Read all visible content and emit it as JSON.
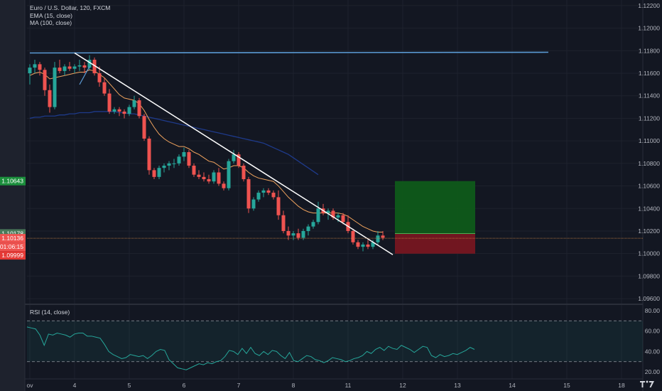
{
  "header": {
    "symbol_line": "Euro / U.S. Dollar, 120, FXCM",
    "ema_label": "EMA (15, close)",
    "ma_label": "MA (100, close)"
  },
  "rsi": {
    "label": "RSI (14, close)",
    "ticks": [
      {
        "v": 80,
        "label": "80.00"
      },
      {
        "v": 60,
        "label": "60.00"
      },
      {
        "v": 40,
        "label": "40.00"
      },
      {
        "v": 20,
        "label": "20.00"
      }
    ],
    "band_upper": 70,
    "band_lower": 30,
    "color": "#26a69a",
    "values": [
      64,
      63,
      62,
      56,
      46,
      57,
      56,
      58,
      57,
      56,
      54,
      57,
      58,
      58,
      55,
      55,
      54,
      53,
      47,
      40,
      37,
      35,
      33,
      34,
      37,
      36,
      35,
      36,
      33,
      36,
      40,
      42,
      41,
      32,
      28,
      24,
      23,
      22,
      24,
      26,
      28,
      27,
      29,
      28,
      30,
      31,
      35,
      41,
      40,
      37,
      43,
      38,
      44,
      38,
      36,
      40,
      37,
      41,
      40,
      36,
      33,
      39,
      31,
      30,
      33,
      36,
      35,
      32,
      31,
      29,
      31,
      34,
      33,
      32,
      30,
      31,
      33,
      34,
      36,
      40,
      38,
      42,
      44,
      41,
      45,
      43,
      42,
      46,
      44,
      42,
      39,
      42,
      45,
      44,
      36,
      34,
      37,
      35,
      36,
      38,
      37,
      39,
      41,
      44,
      42
    ]
  },
  "chart_data": {
    "type": "candlestick",
    "title": "Euro / U.S. Dollar, 120, FXCM",
    "ylim": [
      1.0955,
      1.1225
    ],
    "y_ticks": [
      "1.12200",
      "1.12000",
      "1.11800",
      "1.11600",
      "1.11400",
      "1.11200",
      "1.11000",
      "1.10800",
      "1.10600",
      "1.10400",
      "1.10200",
      "1.10000",
      "1.09800",
      "1.09600"
    ],
    "x_ticks": [
      {
        "i": 0,
        "label": "ov"
      },
      {
        "i": 9,
        "label": "4"
      },
      {
        "i": 20,
        "label": "5"
      },
      {
        "i": 31,
        "label": "6"
      },
      {
        "i": 42,
        "label": "7"
      },
      {
        "i": 53,
        "label": "8"
      },
      {
        "i": 64,
        "label": "11"
      },
      {
        "i": 75,
        "label": "12"
      },
      {
        "i": 86,
        "label": "13"
      },
      {
        "i": 97,
        "label": "14"
      },
      {
        "i": 108,
        "label": "15"
      },
      {
        "i": 119,
        "label": "18"
      }
    ],
    "up_color": "#26a69a",
    "down_color": "#ef5350",
    "candles": [
      [
        1.116,
        1.1168,
        1.115,
        1.1165
      ],
      [
        1.1165,
        1.1172,
        1.116,
        1.1168
      ],
      [
        1.1168,
        1.117,
        1.1158,
        1.1163
      ],
      [
        1.1163,
        1.1165,
        1.114,
        1.1145
      ],
      [
        1.1145,
        1.115,
        1.1125,
        1.113
      ],
      [
        1.113,
        1.117,
        1.1128,
        1.1165
      ],
      [
        1.1165,
        1.1172,
        1.116,
        1.1162
      ],
      [
        1.1162,
        1.1168,
        1.1158,
        1.1166
      ],
      [
        1.1166,
        1.117,
        1.1162,
        1.1164
      ],
      [
        1.1164,
        1.1168,
        1.116,
        1.1166
      ],
      [
        1.1166,
        1.1172,
        1.1162,
        1.1167
      ],
      [
        1.1167,
        1.117,
        1.116,
        1.1165
      ],
      [
        1.1165,
        1.1176,
        1.1163,
        1.1172
      ],
      [
        1.1172,
        1.1174,
        1.1158,
        1.116
      ],
      [
        1.116,
        1.1166,
        1.1148,
        1.1152
      ],
      [
        1.1152,
        1.1156,
        1.114,
        1.1142
      ],
      [
        1.1142,
        1.1146,
        1.1124,
        1.1126
      ],
      [
        1.1126,
        1.113,
        1.1124,
        1.1128
      ],
      [
        1.1128,
        1.113,
        1.1122,
        1.1126
      ],
      [
        1.1126,
        1.1128,
        1.112,
        1.1124
      ],
      [
        1.1124,
        1.1132,
        1.1122,
        1.113
      ],
      [
        1.113,
        1.114,
        1.1128,
        1.1136
      ],
      [
        1.1136,
        1.1138,
        1.112,
        1.1122
      ],
      [
        1.1122,
        1.1124,
        1.11,
        1.1102
      ],
      [
        1.1102,
        1.1104,
        1.107,
        1.1074
      ],
      [
        1.1074,
        1.1076,
        1.1066,
        1.1068
      ],
      [
        1.1068,
        1.1078,
        1.1066,
        1.1076
      ],
      [
        1.1076,
        1.108,
        1.1072,
        1.1078
      ],
      [
        1.1078,
        1.1082,
        1.1074,
        1.108
      ],
      [
        1.108,
        1.1084,
        1.1076,
        1.108
      ],
      [
        1.108,
        1.1088,
        1.1078,
        1.1086
      ],
      [
        1.1086,
        1.1094,
        1.1082,
        1.109
      ],
      [
        1.109,
        1.1092,
        1.1076,
        1.1078
      ],
      [
        1.1078,
        1.108,
        1.1068,
        1.107
      ],
      [
        1.107,
        1.1074,
        1.1066,
        1.1068
      ],
      [
        1.1068,
        1.1072,
        1.1064,
        1.1066
      ],
      [
        1.1066,
        1.107,
        1.1062,
        1.1064
      ],
      [
        1.1064,
        1.1074,
        1.1062,
        1.1072
      ],
      [
        1.1072,
        1.1076,
        1.106,
        1.1062
      ],
      [
        1.1062,
        1.1064,
        1.1056,
        1.1058
      ],
      [
        1.1058,
        1.1084,
        1.1056,
        1.1082
      ],
      [
        1.1082,
        1.1092,
        1.108,
        1.1088
      ],
      [
        1.1088,
        1.109,
        1.1076,
        1.1078
      ],
      [
        1.1078,
        1.108,
        1.1064,
        1.1066
      ],
      [
        1.1066,
        1.1068,
        1.1036,
        1.104
      ],
      [
        1.104,
        1.105,
        1.1038,
        1.1048
      ],
      [
        1.1048,
        1.1056,
        1.1046,
        1.1054
      ],
      [
        1.1054,
        1.1058,
        1.105,
        1.1056
      ],
      [
        1.1056,
        1.1058,
        1.1052,
        1.1054
      ],
      [
        1.1054,
        1.1056,
        1.1048,
        1.105
      ],
      [
        1.105,
        1.1056,
        1.103,
        1.1034
      ],
      [
        1.1034,
        1.1038,
        1.1018,
        1.102
      ],
      [
        1.102,
        1.1024,
        1.1012,
        1.1016
      ],
      [
        1.1016,
        1.102,
        1.1012,
        1.1018
      ],
      [
        1.1018,
        1.1022,
        1.1012,
        1.1014
      ],
      [
        1.1014,
        1.1022,
        1.1012,
        1.102
      ],
      [
        1.102,
        1.1026,
        1.1016,
        1.1024
      ],
      [
        1.1024,
        1.103,
        1.1022,
        1.1028
      ],
      [
        1.1028,
        1.1046,
        1.1026,
        1.104
      ],
      [
        1.104,
        1.1044,
        1.1034,
        1.1036
      ],
      [
        1.1036,
        1.104,
        1.103,
        1.1038
      ],
      [
        1.1038,
        1.104,
        1.103,
        1.1032
      ],
      [
        1.1032,
        1.1036,
        1.1028,
        1.1034
      ],
      [
        1.1034,
        1.1036,
        1.1026,
        1.1028
      ],
      [
        1.1028,
        1.1034,
        1.1018,
        1.102
      ],
      [
        1.102,
        1.1022,
        1.1008,
        1.101
      ],
      [
        1.101,
        1.1012,
        1.1004,
        1.1006
      ],
      [
        1.1006,
        1.101,
        1.1002,
        1.1008
      ],
      [
        1.1008,
        1.1012,
        1.1004,
        1.1006
      ],
      [
        1.1006,
        1.1012,
        1.1004,
        1.101
      ],
      [
        1.101,
        1.102,
        1.1008,
        1.1016
      ],
      [
        1.1016,
        1.102,
        1.1012,
        1.1014
      ]
    ],
    "ema_15": [
      1.1158,
      1.116,
      1.1161,
      1.1159,
      1.1155,
      1.1156,
      1.1157,
      1.1158,
      1.1159,
      1.116,
      1.1161,
      1.1161,
      1.1163,
      1.1162,
      1.1159,
      1.1156,
      1.1151,
      1.1146,
      1.1141,
      1.1138,
      1.1137,
      1.1136,
      1.1133,
      1.1127,
      1.1119,
      1.1112,
      1.1106,
      1.1102,
      1.1099,
      1.1097,
      1.1095,
      1.1095,
      1.1093,
      1.109,
      1.1088,
      1.1085,
      1.1082,
      1.1081,
      1.1078,
      1.1075,
      1.1076,
      1.1078,
      1.1078,
      1.1076,
      1.1072,
      1.1069,
      1.1067,
      1.1066,
      1.1065,
      1.1064,
      1.106,
      1.1055,
      1.105,
      1.1046,
      1.1042,
      1.1039,
      1.1037,
      1.1036,
      1.1036,
      1.1036,
      1.1036,
      1.1036,
      1.1036,
      1.1035,
      1.1033,
      1.103,
      1.1027,
      1.1024,
      1.1022,
      1.102,
      1.1019,
      1.1019
    ],
    "ma_100": [
      1.112,
      1.1121,
      1.1121,
      1.1122,
      1.1122,
      1.1122,
      1.1123,
      1.1123,
      1.1124,
      1.1124,
      1.1125,
      1.1125,
      1.1125,
      1.1126,
      1.1126,
      1.1126,
      1.1126,
      1.1126,
      1.1125,
      1.1125,
      1.1124,
      1.1124,
      1.1123,
      1.1122,
      1.1121,
      1.112,
      1.1119,
      1.1118,
      1.1117,
      1.1116,
      1.1115,
      1.1114,
      1.1113,
      1.1112,
      1.1111,
      1.111,
      1.1109,
      1.1108,
      1.1107,
      1.1106,
      1.1105,
      1.1104,
      1.1103,
      1.1102,
      1.1101,
      1.11,
      1.1099,
      1.1098,
      1.1096,
      1.1094,
      1.1092,
      1.109,
      1.1088,
      1.1085,
      1.1082,
      1.1079,
      1.1076,
      1.1073,
      1.107
    ],
    "resistance_price": 1.1178,
    "trendline": {
      "from": [
        9,
        1.1178
      ],
      "to": [
        73,
        1.0999
      ]
    },
    "blue_segment": {
      "from": [
        10,
        1.115
      ],
      "to": [
        12,
        1.1166
      ]
    },
    "position": {
      "start": 73,
      "end": 89,
      "entry": 1.10178,
      "target": 1.10643,
      "stop": 1.09999,
      "target_label": "1.10643",
      "entry_label": "1.10178",
      "stop_label": "1.09999"
    },
    "last_price": {
      "value": 1.10136,
      "label": "1.10136",
      "countdown": "01:06:15"
    }
  }
}
